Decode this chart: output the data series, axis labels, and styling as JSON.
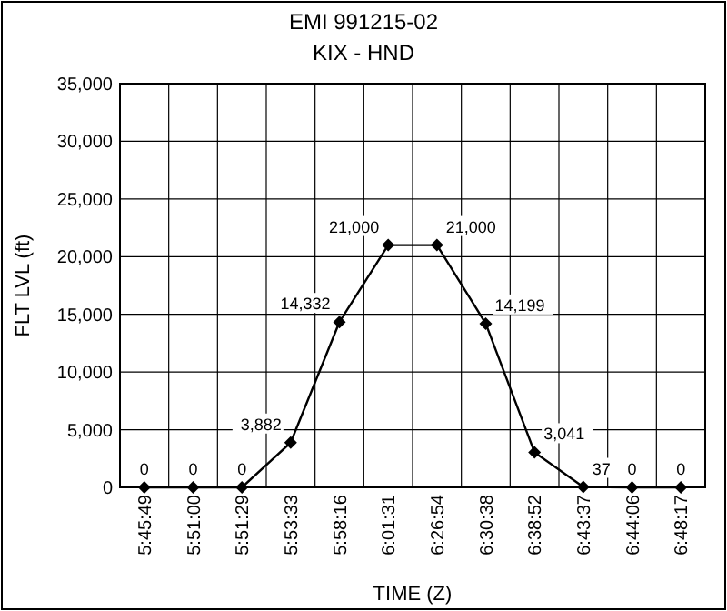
{
  "chart_data": {
    "type": "line",
    "title": "EMI 991215-02",
    "subtitle": "KIX - HND",
    "xlabel": "TIME (Z)",
    "ylabel": "FLT LVL (ft)",
    "categories": [
      "5:45:49",
      "5:51:00",
      "5:51:29",
      "5:53:33",
      "5:58:16",
      "6:01:31",
      "6:26:54",
      "6:30:38",
      "6:38:52",
      "6:43:37",
      "6:44:06",
      "6:48:17"
    ],
    "series": [
      {
        "color": "#000000",
        "values": [
          0,
          0,
          0,
          3882,
          14332,
          21000,
          21000,
          14199,
          3041,
          37,
          0,
          0
        ],
        "value_labels": [
          "0",
          "0",
          "0",
          "3,882",
          "14,332",
          "21,000",
          "21,000",
          "14,199",
          "3,041",
          "37",
          "0",
          "0"
        ]
      }
    ],
    "ylim": [
      0,
      35000
    ],
    "yticks": [
      {
        "value": 0,
        "label": "0"
      },
      {
        "value": 5000,
        "label": "5,000"
      },
      {
        "value": 10000,
        "label": "10,000"
      },
      {
        "value": 15000,
        "label": "15,000"
      },
      {
        "value": 20000,
        "label": "20,000"
      },
      {
        "value": 25000,
        "label": "25,000"
      },
      {
        "value": 30000,
        "label": "30,000"
      },
      {
        "value": 35000,
        "label": "35,000"
      }
    ],
    "grid": true,
    "marker": "diamond",
    "line_style": "solid"
  }
}
